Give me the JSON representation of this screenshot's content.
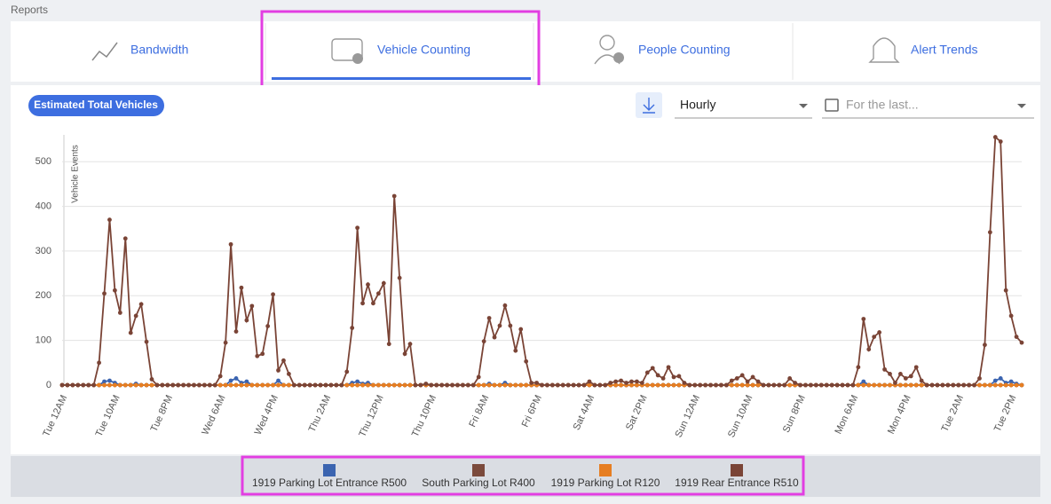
{
  "page": {
    "section": "Reports",
    "tabs": [
      "Bandwidth",
      "Vehicle Counting",
      "People Counting",
      "Alert Trends"
    ],
    "chip": "Estimated Total Vehicles",
    "interval": "Hourly",
    "date_placeholder": "For the last..."
  },
  "chart_data": {
    "type": "line",
    "y_label": "Vehicle Events",
    "categories": [
      "Tue 12AM",
      null,
      null,
      null,
      null,
      null,
      null,
      null,
      null,
      null,
      "Tue 10AM",
      null,
      null,
      null,
      null,
      null,
      null,
      null,
      null,
      null,
      "Tue 8PM",
      null,
      null,
      null,
      null,
      null,
      null,
      null,
      null,
      null,
      "Wed 6AM",
      null,
      null,
      null,
      null,
      null,
      null,
      null,
      null,
      null,
      "Wed 4PM",
      null,
      null,
      null,
      null,
      null,
      null,
      null,
      null,
      null,
      "Thu 2AM",
      null,
      null,
      null,
      null,
      null,
      null,
      null,
      null,
      null,
      "Thu 12PM",
      null,
      null,
      null,
      null,
      null,
      null,
      null,
      null,
      null,
      "Thu 10PM",
      null,
      null,
      null,
      null,
      null,
      null,
      null,
      null,
      null,
      "Fri 8AM",
      null,
      null,
      null,
      null,
      null,
      null,
      null,
      null,
      null,
      "Fri 6PM",
      null,
      null,
      null,
      null,
      null,
      null,
      null,
      null,
      null,
      "Sat 4AM",
      null,
      null,
      null,
      null,
      null,
      null,
      null,
      null,
      null,
      "Sat 2PM",
      null,
      null,
      null,
      null,
      null,
      null,
      null,
      null,
      null,
      "Sun 12AM",
      null,
      null,
      null,
      null,
      null,
      null,
      null,
      null,
      null,
      "Sun 10AM",
      null,
      null,
      null,
      null,
      null,
      null,
      null,
      null,
      null,
      "Sun 8PM",
      null,
      null,
      null,
      null,
      null,
      null,
      null,
      null,
      null,
      "Mon 6AM",
      null,
      null,
      null,
      null,
      null,
      null,
      null,
      null,
      null,
      "Mon 4PM",
      null,
      null,
      null,
      null,
      null,
      null,
      null,
      null,
      null,
      "Tue 2AM",
      null,
      null,
      null,
      null,
      null,
      null,
      null,
      null,
      null,
      "Tue 2PM",
      null,
      null
    ],
    "ylim": [
      0,
      560
    ],
    "yticks": [
      0,
      100,
      200,
      300,
      400,
      500
    ],
    "grid": true,
    "series": [
      {
        "name": "1919 Parking Lot Entrance R500",
        "color": "#3b64b0",
        "values": [
          0,
          0,
          0,
          0,
          0,
          0,
          0,
          0,
          8,
          10,
          5,
          0,
          0,
          0,
          3,
          0,
          0,
          0,
          0,
          0,
          0,
          0,
          0,
          0,
          0,
          0,
          0,
          0,
          0,
          0,
          0,
          0,
          10,
          15,
          5,
          8,
          0,
          0,
          0,
          0,
          0,
          10,
          0,
          0,
          0,
          0,
          0,
          0,
          0,
          0,
          0,
          0,
          0,
          0,
          0,
          5,
          8,
          3,
          5,
          0,
          0,
          0,
          0,
          0,
          0,
          0,
          0,
          0,
          0,
          0,
          0,
          0,
          0,
          0,
          0,
          0,
          0,
          0,
          0,
          0,
          0,
          3,
          0,
          0,
          5,
          0,
          0,
          0,
          0,
          0,
          0,
          0,
          0,
          0,
          0,
          0,
          0,
          0,
          0,
          0,
          0,
          0,
          0,
          0,
          0,
          0,
          0,
          0,
          0,
          0,
          0,
          0,
          0,
          0,
          0,
          0,
          0,
          0,
          0,
          0,
          0,
          0,
          0,
          0,
          0,
          0,
          0,
          0,
          0,
          0,
          0,
          0,
          0,
          0,
          0,
          0,
          0,
          0,
          0,
          0,
          0,
          0,
          0,
          0,
          0,
          0,
          0,
          0,
          0,
          0,
          0,
          0,
          8,
          0,
          0,
          0,
          0,
          0,
          0,
          0,
          0,
          0,
          0,
          0,
          0,
          0,
          0,
          0,
          0,
          0,
          0,
          0,
          0,
          0,
          0,
          0,
          0,
          10,
          15,
          5,
          8,
          3,
          0
        ]
      },
      {
        "name": "South Parking Lot R400",
        "color": "#7b4a3c",
        "values": [
          0,
          0,
          0,
          0,
          0,
          0,
          0,
          0,
          0,
          0,
          0,
          0,
          0,
          0,
          0,
          0,
          0,
          0,
          0,
          0,
          0,
          0,
          0,
          0,
          0,
          0,
          0,
          0,
          0,
          0,
          0,
          0,
          0,
          0,
          0,
          0,
          0,
          0,
          0,
          0,
          0,
          0,
          0,
          0,
          0,
          0,
          0,
          0,
          0,
          0,
          0,
          0,
          0,
          0,
          0,
          0,
          0,
          0,
          0,
          0,
          0,
          0,
          0,
          0,
          0,
          0,
          0,
          0,
          0,
          0,
          0,
          0,
          0,
          0,
          0,
          0,
          0,
          0,
          0,
          0,
          0,
          0,
          0,
          0,
          0,
          0,
          0,
          0,
          0,
          0,
          0,
          0,
          0,
          0,
          0,
          0,
          0,
          0,
          0,
          0,
          0,
          0,
          0,
          0,
          0,
          0,
          0,
          0,
          0,
          0,
          0,
          0,
          0,
          0,
          0,
          0,
          0,
          0,
          0,
          0,
          0,
          0,
          0,
          0,
          0,
          0,
          0,
          0,
          0,
          0,
          0,
          0,
          0,
          0,
          0,
          0,
          0,
          0,
          0,
          0,
          0,
          0,
          0,
          0,
          0,
          0,
          0,
          0,
          0,
          0,
          0,
          0,
          0,
          0,
          0,
          0,
          0,
          0,
          0,
          0,
          0,
          0,
          0,
          0,
          0,
          0,
          0,
          0,
          0,
          0,
          0,
          0,
          0,
          0,
          0,
          0,
          0,
          0,
          0,
          0,
          0,
          0,
          0
        ]
      },
      {
        "name": "1919 Parking Lot R120",
        "color": "#e67e22",
        "values": [
          0,
          0,
          0,
          0,
          0,
          0,
          0,
          0,
          0,
          0,
          0,
          0,
          0,
          0,
          0,
          0,
          0,
          0,
          0,
          0,
          0,
          0,
          0,
          0,
          0,
          0,
          0,
          0,
          0,
          0,
          0,
          0,
          0,
          0,
          0,
          0,
          0,
          0,
          0,
          0,
          0,
          0,
          0,
          0,
          0,
          0,
          0,
          0,
          0,
          0,
          0,
          0,
          0,
          0,
          0,
          0,
          0,
          0,
          0,
          0,
          0,
          0,
          0,
          0,
          0,
          0,
          0,
          0,
          0,
          0,
          0,
          0,
          0,
          0,
          0,
          0,
          0,
          0,
          0,
          0,
          0,
          0,
          0,
          0,
          0,
          0,
          0,
          0,
          0,
          0,
          0,
          0,
          0,
          0,
          0,
          0,
          0,
          0,
          0,
          0,
          0,
          0,
          0,
          0,
          0,
          0,
          0,
          0,
          0,
          0,
          0,
          0,
          0,
          0,
          0,
          0,
          0,
          0,
          0,
          0,
          0,
          0,
          0,
          0,
          0,
          0,
          0,
          0,
          0,
          0,
          0,
          0,
          0,
          0,
          0,
          0,
          0,
          0,
          0,
          0,
          0,
          0,
          0,
          0,
          0,
          0,
          0,
          0,
          0,
          0,
          0,
          0,
          0,
          0,
          0,
          0,
          0,
          0,
          0,
          0,
          0,
          0,
          0,
          0,
          0,
          0,
          0,
          0,
          0,
          0,
          0,
          0,
          0,
          0,
          0,
          0,
          0,
          0,
          0,
          0,
          0,
          0,
          0
        ]
      },
      {
        "name": "1919 Rear Entrance R510",
        "color": "#7a4436",
        "values": [
          0,
          0,
          0,
          0,
          0,
          0,
          0,
          50,
          205,
          370,
          212,
          162,
          328,
          117,
          155,
          181,
          97,
          13,
          0,
          0,
          0,
          0,
          0,
          0,
          0,
          0,
          0,
          0,
          0,
          0,
          20,
          95,
          315,
          120,
          218,
          145,
          177,
          65,
          70,
          132,
          203,
          33,
          55,
          25,
          0,
          0,
          0,
          0,
          0,
          0,
          0,
          0,
          0,
          0,
          30,
          128,
          352,
          183,
          225,
          183,
          205,
          228,
          92,
          423,
          240,
          70,
          92,
          0,
          0,
          3,
          0,
          0,
          0,
          0,
          0,
          0,
          0,
          0,
          0,
          18,
          98,
          150,
          107,
          133,
          178,
          133,
          77,
          125,
          53,
          5,
          5,
          0,
          0,
          0,
          0,
          0,
          0,
          0,
          0,
          0,
          8,
          0,
          0,
          0,
          5,
          8,
          10,
          5,
          8,
          8,
          5,
          28,
          38,
          22,
          15,
          40,
          18,
          20,
          5,
          0,
          0,
          0,
          0,
          0,
          0,
          0,
          0,
          10,
          15,
          22,
          8,
          18,
          8,
          0,
          0,
          0,
          0,
          0,
          15,
          5,
          0,
          0,
          0,
          0,
          0,
          0,
          0,
          0,
          0,
          0,
          0,
          40,
          148,
          80,
          108,
          118,
          35,
          25,
          5,
          25,
          15,
          20,
          40,
          10,
          0,
          0,
          0,
          0,
          0,
          0,
          0,
          0,
          0,
          0,
          15,
          90,
          342,
          555,
          545,
          212,
          155,
          108,
          95
        ]
      }
    ]
  }
}
